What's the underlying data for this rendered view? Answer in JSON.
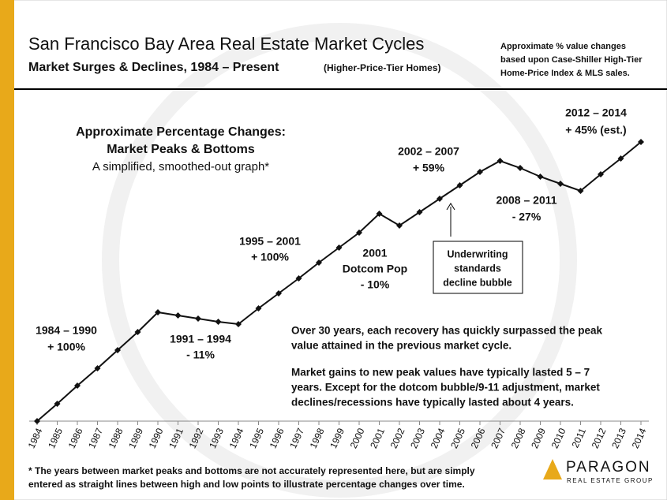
{
  "chart_data": {
    "type": "line",
    "title": "San Francisco Bay Area Real Estate Market Cycles",
    "subtitle": "Market Surges & Declines, 1984 – Present",
    "subtitle_note": "(Higher-Price-Tier Homes)",
    "note": [
      "Approximate % value changes",
      "based upon Case-Shiller High-Tier",
      "Home-Price Index & MLS sales."
    ],
    "categories": [
      "1984",
      "1985",
      "1986",
      "1987",
      "1988",
      "1989",
      "1990",
      "1991",
      "1992",
      "1993",
      "1994",
      "1995",
      "1996",
      "1997",
      "1998",
      "1999",
      "2000",
      "2001",
      "2002",
      "2003",
      "2004",
      "2005",
      "2006",
      "2007",
      "2008",
      "2009",
      "2010",
      "2011",
      "2012",
      "2013",
      "2014"
    ],
    "values": [
      0,
      22,
      45,
      67,
      90,
      113,
      138,
      134,
      130,
      126,
      123,
      143,
      162,
      181,
      201,
      220,
      239,
      263,
      248,
      265,
      282,
      299,
      316,
      330,
      321,
      310,
      301,
      292,
      313,
      333,
      354
    ],
    "ylim": [
      0,
      400
    ],
    "color": "#111111",
    "annotations": [
      {
        "lines": [
          "Approximate Percentage Changes:",
          "Market Peaks & Bottoms"
        ]
      },
      {
        "lines": [
          "A simplified, smoothed-out graph*"
        ]
      },
      {
        "lines": [
          "1984 – 1990",
          "+ 100%"
        ]
      },
      {
        "lines": [
          "1991 – 1994",
          "- 11%"
        ]
      },
      {
        "lines": [
          "1995 – 2001",
          "+ 100%"
        ]
      },
      {
        "lines": [
          "2001",
          "Dotcom Pop",
          "- 10%"
        ]
      },
      {
        "lines": [
          "2002 – 2007",
          "+ 59%"
        ]
      },
      {
        "lines": [
          "2008 – 2011",
          "- 27%"
        ]
      },
      {
        "lines": [
          "2012 – 2014",
          "+ 45% (est.)"
        ]
      },
      {
        "lines": [
          "Underwriting",
          "standards",
          "decline bubble"
        ]
      },
      {
        "lines": [
          "Over 30 years, each recovery has quickly surpassed the peak",
          "value attained in the previous market cycle."
        ]
      },
      {
        "lines": [
          "Market gains to new peak values have typically lasted 5 – 7",
          "years. Except for the dotcom bubble/9-11 adjustment, market",
          "declines/recessions have typically lasted about 4 years."
        ]
      }
    ],
    "footnote": [
      "* The years between market peaks and bottoms are not accurately represented here, but are simply",
      "entered as straight lines between high and low points to illustrate percentage changes over time."
    ],
    "logo": {
      "name": "PARAGON",
      "tagline": "REAL ESTATE GROUP"
    }
  }
}
